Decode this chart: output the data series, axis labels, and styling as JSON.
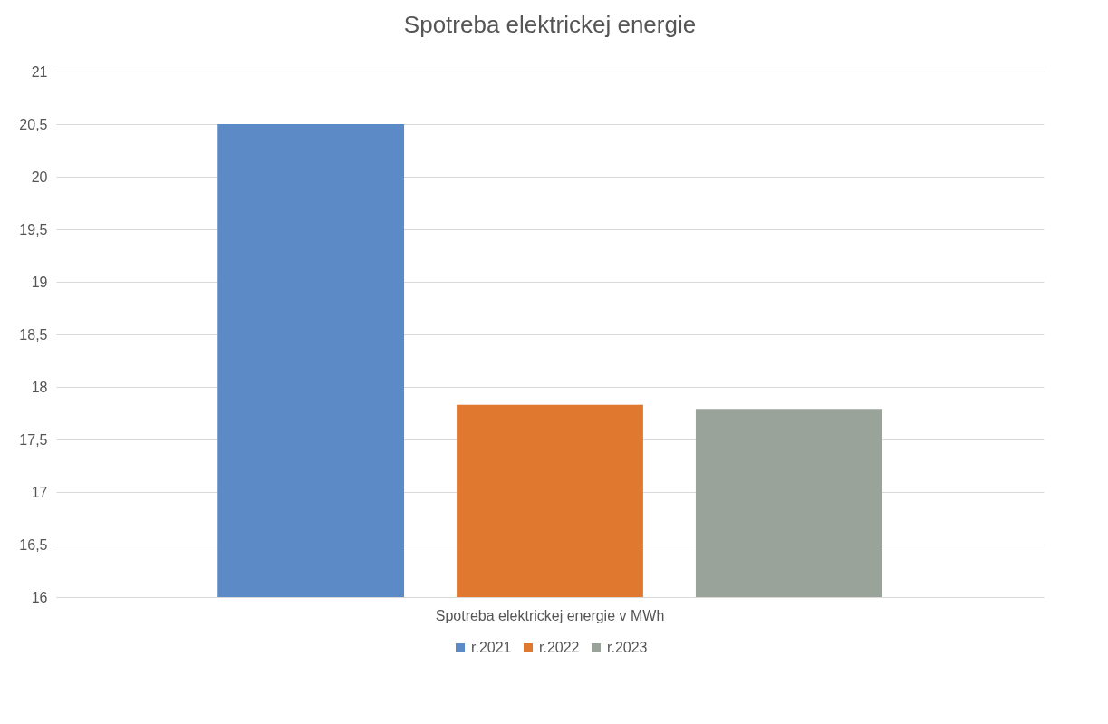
{
  "chart_data": {
    "type": "bar",
    "title": "Spotreba elektrickej energie",
    "categories": [
      "Spotreba elektrickej energie v MWh"
    ],
    "series": [
      {
        "name": "r.2021",
        "color": "#5b8ac6",
        "values": [
          20.5
        ]
      },
      {
        "name": "r.2022",
        "color": "#e0782f",
        "values": [
          17.83
        ]
      },
      {
        "name": "r.2023",
        "color": "#9aa39a",
        "values": [
          17.79
        ]
      }
    ],
    "ylim": [
      16,
      21
    ],
    "yticks": [
      16,
      {
        "value": 16.5,
        "label": "16,5"
      },
      17,
      {
        "value": 17.5,
        "label": "17,5"
      },
      18,
      {
        "value": 18.5,
        "label": "18,5"
      },
      19,
      {
        "value": 19.5,
        "label": "19,5"
      },
      20,
      {
        "value": 20.5,
        "label": "20,5"
      },
      21
    ],
    "grid": "y",
    "legend": "bottom"
  }
}
